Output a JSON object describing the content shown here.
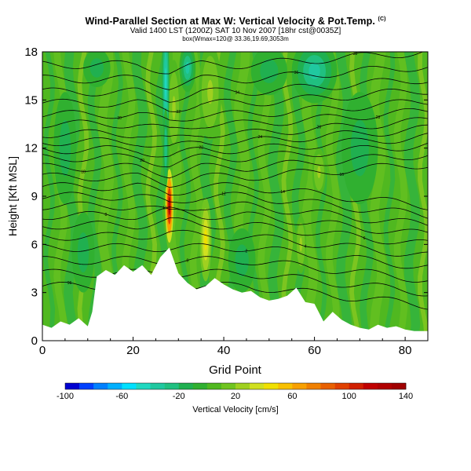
{
  "chart_data": {
    "type": "heatmap",
    "title": "Wind-Parallel Section at Max W: Vertical Velocity & Pot.Temp.",
    "title_mark": "(C)",
    "subtitle": "Valid 1400 LST (1200Z) SAT 10 Nov 2007 [18hr cst@0035Z]",
    "subtitle2": "box(Wmax=120@ 33.36,19.69,3053m",
    "xlabel": "Grid Point",
    "ylabel": "Height [Kft MSL]",
    "xlim": [
      0,
      85
    ],
    "ylim": [
      0,
      18
    ],
    "xticks": [
      0,
      20,
      40,
      60,
      80
    ],
    "yticks": [
      0,
      3,
      6,
      9,
      12,
      15,
      18
    ],
    "colorbar": {
      "label": "Vertical Velocity [cm/s]",
      "ticks": [
        -100,
        -60,
        -20,
        20,
        60,
        100,
        140
      ],
      "levels": [
        -100,
        -90,
        -80,
        -70,
        -60,
        -50,
        -40,
        -30,
        -20,
        -10,
        0,
        10,
        20,
        30,
        40,
        50,
        60,
        70,
        80,
        90,
        100,
        110,
        120,
        130,
        140
      ],
      "colors": [
        "#0000d0",
        "#0040ff",
        "#0080ff",
        "#00b0ff",
        "#00e0ff",
        "#20d8c0",
        "#20c8a0",
        "#20c080",
        "#20b050",
        "#30b030",
        "#50b820",
        "#70c420",
        "#a0d020",
        "#d0e020",
        "#f0e000",
        "#f8c000",
        "#f8a000",
        "#f08000",
        "#e86000",
        "#e04000",
        "#d02000",
        "#c00000",
        "#b00000",
        "#a00000"
      ]
    },
    "terrain": [
      [
        0,
        1.0
      ],
      [
        2,
        0.8
      ],
      [
        4,
        1.2
      ],
      [
        6,
        1.0
      ],
      [
        8,
        1.4
      ],
      [
        10,
        0.9
      ],
      [
        11,
        1.8
      ],
      [
        12,
        4.0
      ],
      [
        14,
        4.4
      ],
      [
        16,
        4.1
      ],
      [
        18,
        4.7
      ],
      [
        20,
        4.3
      ],
      [
        22,
        4.7
      ],
      [
        24,
        4.1
      ],
      [
        26,
        5.2
      ],
      [
        28,
        5.8
      ],
      [
        30,
        4.2
      ],
      [
        32,
        3.6
      ],
      [
        34,
        3.2
      ],
      [
        36,
        3.4
      ],
      [
        38,
        3.9
      ],
      [
        40,
        3.5
      ],
      [
        42,
        3.2
      ],
      [
        44,
        3.0
      ],
      [
        46,
        3.1
      ],
      [
        48,
        2.7
      ],
      [
        50,
        2.5
      ],
      [
        52,
        2.6
      ],
      [
        54,
        2.8
      ],
      [
        56,
        3.3
      ],
      [
        58,
        2.4
      ],
      [
        60,
        2.3
      ],
      [
        62,
        1.2
      ],
      [
        64,
        1.8
      ],
      [
        66,
        1.3
      ],
      [
        68,
        1.0
      ],
      [
        70,
        0.8
      ],
      [
        72,
        0.7
      ],
      [
        74,
        1.0
      ],
      [
        76,
        0.8
      ],
      [
        78,
        0.9
      ],
      [
        80,
        0.7
      ],
      [
        82,
        0.6
      ],
      [
        85,
        0.6
      ]
    ],
    "features": [
      {
        "kind": "updraft",
        "x": 28.0,
        "y": 8.4,
        "w": 0.9,
        "h": 2.3,
        "value": 120
      },
      {
        "kind": "updraft",
        "x": 36.0,
        "y": 6.3,
        "w": 1.3,
        "h": 2.6,
        "value": 40
      },
      {
        "kind": "updraft",
        "x": 37.0,
        "y": 15.5,
        "w": 2.5,
        "h": 3.0,
        "value": 20
      },
      {
        "kind": "updraft",
        "x": 29.0,
        "y": 14.5,
        "w": 1.5,
        "h": 3.0,
        "value": 20
      },
      {
        "kind": "updraft",
        "x": 57.0,
        "y": 6.0,
        "w": 1.2,
        "h": 1.8,
        "value": 20
      },
      {
        "kind": "updraft",
        "x": 61.0,
        "y": 10.5,
        "w": 1.5,
        "h": 1.5,
        "value": 20
      },
      {
        "kind": "downdraft",
        "x": 27.2,
        "y": 16.0,
        "w": 0.8,
        "h": 4.0,
        "value": -50
      },
      {
        "kind": "downdraft",
        "x": 27.2,
        "y": 12.0,
        "w": 0.6,
        "h": 2.5,
        "value": -30
      },
      {
        "kind": "downdraft",
        "x": 32.0,
        "y": 17.0,
        "w": 1.8,
        "h": 1.5,
        "value": -40
      },
      {
        "kind": "downdraft",
        "x": 60.0,
        "y": 16.8,
        "w": 5.0,
        "h": 2.0,
        "value": -40
      },
      {
        "kind": "downdraft",
        "x": 50.0,
        "y": 16.8,
        "w": 4.0,
        "h": 1.5,
        "value": -20
      },
      {
        "kind": "downdraft",
        "x": 12.0,
        "y": 17.0,
        "w": 3.0,
        "h": 1.2,
        "value": -20
      },
      {
        "kind": "downdraft",
        "x": 5.0,
        "y": 12.0,
        "w": 2.5,
        "h": 3.5,
        "value": -20
      },
      {
        "kind": "downdraft",
        "x": 9.0,
        "y": 5.5,
        "w": 2.5,
        "h": 2.5,
        "value": -20
      },
      {
        "kind": "downdraft",
        "x": 44.0,
        "y": 5.0,
        "w": 3.0,
        "h": 2.0,
        "value": -20
      },
      {
        "kind": "downdraft",
        "x": 70.0,
        "y": 12.0,
        "w": 4.0,
        "h": 3.5,
        "value": -20
      }
    ],
    "contours": {
      "levels": [
        296,
        298,
        300,
        302,
        304,
        306,
        308,
        310,
        312,
        314,
        316,
        318,
        320,
        322,
        324,
        326,
        328,
        330,
        332,
        334,
        336,
        338
      ],
      "base_height": [
        3.4,
        4.2,
        5.0,
        5.8,
        6.5,
        7.2,
        7.8,
        8.4,
        9.0,
        9.6,
        10.2,
        10.8,
        11.4,
        11.9,
        12.4,
        12.9,
        13.5,
        14.1,
        14.8,
        15.5,
        16.3,
        17.2
      ]
    }
  }
}
